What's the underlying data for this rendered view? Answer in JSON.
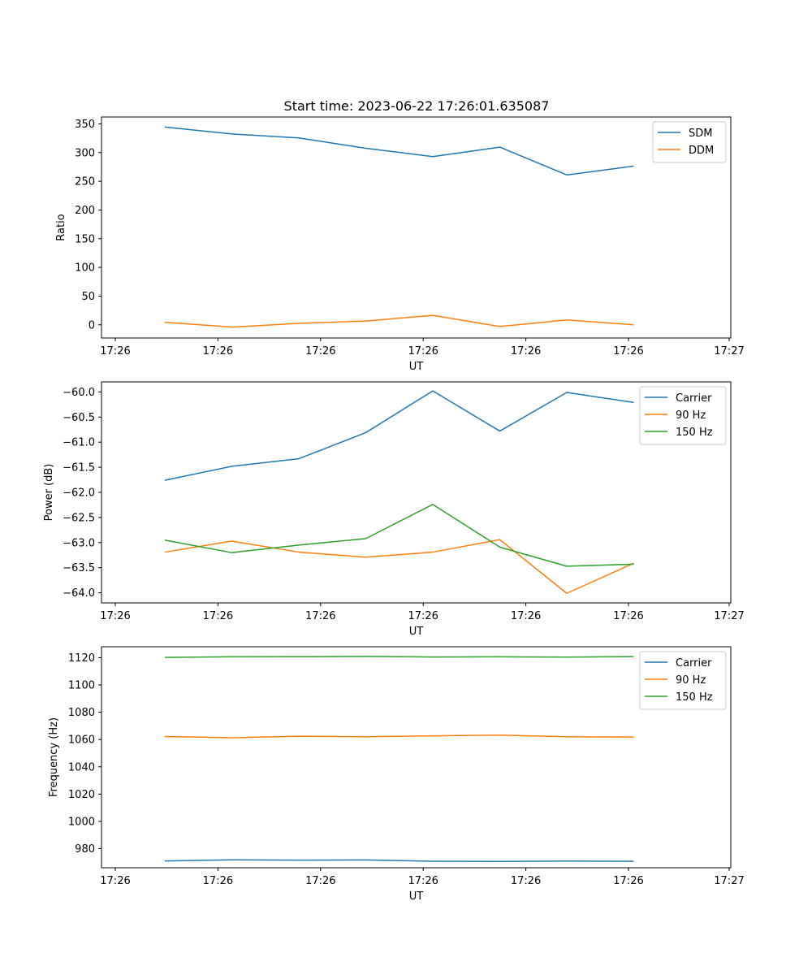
{
  "figure_title": "Start time: 2023-06-22 17:26:01.635087",
  "chart_data": [
    {
      "type": "line",
      "xlabel": "UT",
      "ylabel": "Ratio",
      "x_tick_labels": [
        "17:26",
        "17:26",
        "17:26",
        "17:26",
        "17:26",
        "17:26",
        "17:27"
      ],
      "yticks": [
        0,
        50,
        100,
        150,
        200,
        250,
        300,
        350
      ],
      "ylim": [
        -23,
        362
      ],
      "legend_position": "upper-right",
      "grid": false,
      "series": [
        {
          "name": "SDM",
          "color": "#1f77b4",
          "values": [
            344.5,
            332.5,
            325.5,
            307.5,
            293,
            309.5,
            261,
            276.5
          ]
        },
        {
          "name": "DDM",
          "color": "#ff7f0e",
          "values": [
            4.5,
            -4,
            2.5,
            6.5,
            16.5,
            -3,
            8.5,
            0
          ]
        }
      ]
    },
    {
      "type": "line",
      "xlabel": "UT",
      "ylabel": "Power (dB)",
      "x_tick_labels": [
        "17:26",
        "17:26",
        "17:26",
        "17:26",
        "17:26",
        "17:26",
        "17:27"
      ],
      "yticks": [
        "-64.0",
        "-63.5",
        "-63.0",
        "-62.5",
        "-62.0",
        "-61.5",
        "-61.0",
        "-60.5",
        "-60.0"
      ],
      "ylim": [
        -64.2,
        -59.8
      ],
      "legend_position": "upper-right",
      "grid": false,
      "series": [
        {
          "name": "Carrier",
          "color": "#1f77b4",
          "values": [
            -61.76,
            -61.48,
            -61.33,
            -60.81,
            -59.98,
            -60.78,
            -60.01,
            -60.21
          ]
        },
        {
          "name": "90 Hz",
          "color": "#ff7f0e",
          "values": [
            -63.19,
            -62.97,
            -63.19,
            -63.29,
            -63.19,
            -62.94,
            -64.01,
            -63.41
          ]
        },
        {
          "name": "150 Hz",
          "color": "#2ca02c",
          "values": [
            -62.95,
            -63.2,
            -63.05,
            -62.92,
            -62.24,
            -63.09,
            -63.47,
            -63.43
          ]
        }
      ]
    },
    {
      "type": "line",
      "xlabel": "UT",
      "ylabel": "Frequency (Hz)",
      "x_tick_labels": [
        "17:26",
        "17:26",
        "17:26",
        "17:26",
        "17:26",
        "17:26",
        "17:27"
      ],
      "yticks": [
        980,
        1000,
        1020,
        1040,
        1060,
        1080,
        1100,
        1120
      ],
      "ylim": [
        966,
        1128
      ],
      "legend_position": "upper-right",
      "grid": false,
      "series": [
        {
          "name": "Carrier",
          "color": "#1f77b4",
          "values": [
            971,
            971.8,
            971.6,
            971.7,
            970.8,
            970.6,
            970.9,
            970.7
          ]
        },
        {
          "name": "90 Hz",
          "color": "#ff7f0e",
          "values": [
            1062.2,
            1061.3,
            1062.4,
            1062,
            1062.7,
            1063.2,
            1062,
            1061.8
          ]
        },
        {
          "name": "150 Hz",
          "color": "#2ca02c",
          "values": [
            1120.2,
            1120.6,
            1120.7,
            1120.9,
            1120.5,
            1120.6,
            1120.4,
            1120.8
          ]
        }
      ]
    }
  ]
}
